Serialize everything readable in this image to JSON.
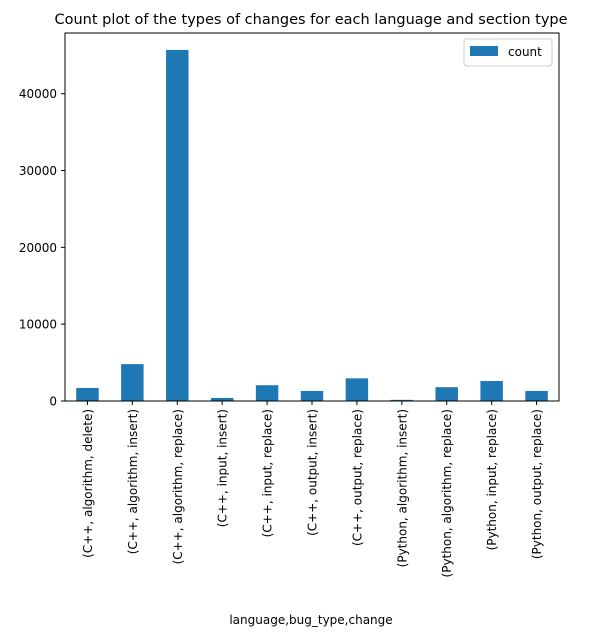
{
  "chart_data": {
    "type": "bar",
    "title": "Count plot of the types of changes for each language and section type",
    "xlabel": "language,bug_type,change",
    "ylabel": "",
    "ylim": [
      0,
      47900
    ],
    "yticks": [
      0,
      10000,
      20000,
      30000,
      40000
    ],
    "grid": false,
    "legend_position": "top-right",
    "bar_color": "#1f77b4",
    "categories": [
      "(C++, algorithm, delete)",
      "(C++, algorithm, insert)",
      "(C++, algorithm, replace)",
      "(C++, input, insert)",
      "(C++, input, replace)",
      "(C++, output, insert)",
      "(C++, output, replace)",
      "(Python, algorithm, insert)",
      "(Python, algorithm, replace)",
      "(Python, input, replace)",
      "(Python, output, replace)"
    ],
    "series": [
      {
        "name": "count",
        "values": [
          1700,
          4800,
          45700,
          400,
          2050,
          1300,
          2950,
          150,
          1800,
          2600,
          1300
        ]
      }
    ]
  }
}
